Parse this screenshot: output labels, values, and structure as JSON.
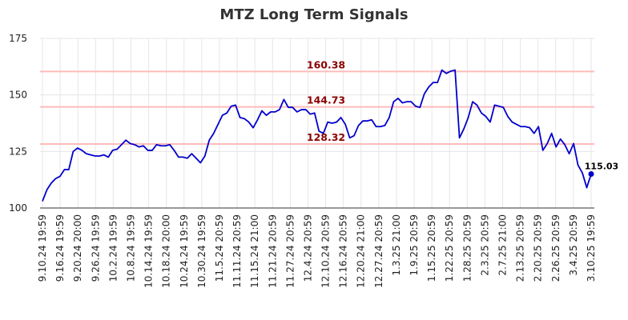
{
  "chart_data": {
    "type": "line",
    "title": "MTZ Long Term Signals",
    "xlabel": "",
    "ylabel": "",
    "ylim": [
      100,
      175
    ],
    "y_ticks": [
      "100",
      "125",
      "150",
      "175"
    ],
    "x_tick_labels": [
      "9.10.24 19:59",
      "9.16.24 19:59",
      "9.20.24 20:00",
      "9.26.24 19:59",
      "10.2.24 19:59",
      "10.8.24 19:59",
      "10.14.24 19:59",
      "10.18.24 20:00",
      "10.24.24 19:59",
      "10.30.24 19:59",
      "11.5.24 20:59",
      "11.11.24 20:59",
      "11.15.24 21:00",
      "11.21.24 20:59",
      "11.27.24 20:59",
      "12.4.24 20:59",
      "12.10.24 20:59",
      "12.16.24 20:59",
      "12.20.24 21:00",
      "12.27.24 20:59",
      "1.3.25 21:00",
      "1.9.25 20:59",
      "1.15.25 20:59",
      "1.22.25 20:59",
      "1.28.25 20:59",
      "2.3.25 20:59",
      "2.7.25 21:00",
      "2.13.25 20:59",
      "2.20.25 20:59",
      "2.26.25 20:59",
      "3.4.25 20:59",
      "3.10.25 19:59"
    ],
    "grid": true,
    "levels": [
      {
        "value": 160.38,
        "label": "160.38"
      },
      {
        "value": 144.73,
        "label": "144.73"
      },
      {
        "value": 128.32,
        "label": "128.32"
      }
    ],
    "last_label": "115.03",
    "series": [
      {
        "color": "#0000cc",
        "values": [
          103,
          108,
          111,
          113,
          114,
          117,
          117,
          125,
          126.5,
          125.5,
          124,
          123.5,
          123,
          123,
          123.5,
          122.5,
          125.5,
          126,
          128,
          130,
          128.5,
          128,
          127,
          127.5,
          125.5,
          125.5,
          128,
          127.5,
          127.5,
          128,
          125.5,
          122.5,
          122.5,
          122,
          124,
          122,
          120,
          123,
          130,
          133,
          137,
          141,
          142,
          145,
          145.5,
          140,
          139.5,
          138,
          135.5,
          139,
          143,
          141,
          142.5,
          142.5,
          143.5,
          148,
          144.5,
          144.5,
          142.5,
          143.5,
          143.5,
          141.5,
          142,
          134,
          133,
          138,
          137.5,
          138,
          140,
          137,
          131,
          132,
          136.5,
          138.5,
          138.5,
          139,
          136,
          136,
          136.5,
          140,
          147,
          148.5,
          146.5,
          147,
          147,
          145,
          144.5,
          150.5,
          153.5,
          155.5,
          155.5,
          161,
          159.5,
          160.5,
          161,
          131,
          135,
          140,
          147,
          145.5,
          142,
          140.5,
          138,
          145.5,
          145,
          144.5,
          140.5,
          138,
          137,
          136,
          136,
          135.5,
          133,
          136,
          125.5,
          128.5,
          133,
          127,
          130.5,
          128,
          124,
          128.5,
          119,
          115.5,
          109,
          115.03
        ]
      }
    ]
  }
}
